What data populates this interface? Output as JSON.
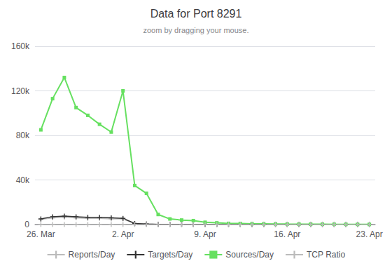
{
  "chart_data": {
    "type": "line",
    "title": "Data for Port 8291",
    "subtitle": "zoom by dragging your mouse.",
    "categories": [
      "26. Mar",
      null,
      null,
      null,
      null,
      null,
      null,
      "2. Apr",
      null,
      null,
      null,
      null,
      null,
      null,
      "9. Apr",
      null,
      null,
      null,
      null,
      null,
      null,
      "16. Apr",
      null,
      null,
      null,
      null,
      null,
      null,
      "23. Apr"
    ],
    "series": [
      {
        "name": "Reports/Day",
        "color": "#bbbbbb",
        "marker": "plus",
        "values": [
          4500,
          6000,
          6500,
          6000,
          5500,
          5500,
          5000,
          5000,
          800,
          400,
          180,
          130,
          90,
          70,
          55,
          45,
          35,
          28,
          22,
          18,
          16,
          13,
          11,
          9,
          7,
          6,
          5,
          4,
          3
        ]
      },
      {
        "name": "Targets/Day",
        "color": "#333333",
        "marker": "plus",
        "values": [
          5000,
          7000,
          7500,
          7000,
          6500,
          6500,
          6000,
          5500,
          1000,
          500,
          200,
          150,
          100,
          80,
          60,
          50,
          40,
          30,
          25,
          20,
          18,
          15,
          12,
          10,
          8,
          7,
          6,
          5,
          4
        ]
      },
      {
        "name": "Sources/Day",
        "color": "#66e060",
        "marker": "square",
        "values": [
          85000,
          113000,
          132000,
          105000,
          98000,
          90000,
          83000,
          120000,
          35000,
          28000,
          9000,
          5000,
          4000,
          3500,
          2000,
          1500,
          1000,
          900,
          700,
          600,
          500,
          400,
          350,
          300,
          250,
          200,
          150,
          100,
          80
        ]
      },
      {
        "name": "TCP Ratio",
        "color": "#bbbbbb",
        "marker": "plus",
        "values": [
          0,
          0,
          0,
          0,
          0,
          0,
          0,
          0,
          0,
          0,
          0,
          0,
          0,
          0,
          0,
          0,
          0,
          0,
          0,
          0,
          0,
          0,
          0,
          0,
          0,
          0,
          0,
          0,
          0
        ]
      }
    ],
    "ylim": [
      0,
      160000
    ],
    "yticks": [
      0,
      {
        "value": 40000,
        "label": "40k"
      },
      {
        "value": 80000,
        "label": "80k"
      },
      {
        "value": 120000,
        "label": "120k"
      },
      {
        "value": 160000,
        "label": "160k"
      }
    ],
    "grid": true,
    "legend": "bottom"
  }
}
